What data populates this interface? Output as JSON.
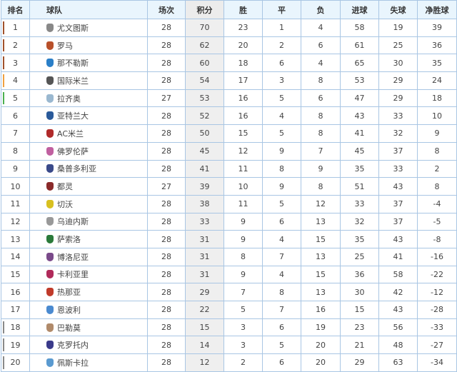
{
  "headers": {
    "rank": "排名",
    "team": "球队",
    "played": "场次",
    "points": "积分",
    "won": "胜",
    "drawn": "平",
    "lost": "负",
    "gf": "进球",
    "ga": "失球",
    "gd": "净胜球"
  },
  "zone_colors": {
    "champions": "#a0522d",
    "europa": "#f0a040",
    "conference": "#4cb050",
    "relegation": "#8a8a8a"
  },
  "rows": [
    {
      "rank": "1",
      "team": "尤文图斯",
      "crest": "juventus-crest",
      "crest_color": "#888888",
      "zone": "champions",
      "played": "28",
      "points": "70",
      "won": "23",
      "drawn": "1",
      "lost": "4",
      "gf": "58",
      "ga": "19",
      "gd": "39"
    },
    {
      "rank": "2",
      "team": "罗马",
      "crest": "roma-crest",
      "crest_color": "#b8502a",
      "zone": "champions",
      "played": "28",
      "points": "62",
      "won": "20",
      "drawn": "2",
      "lost": "6",
      "gf": "61",
      "ga": "25",
      "gd": "36"
    },
    {
      "rank": "3",
      "team": "那不勒斯",
      "crest": "napoli-crest",
      "crest_color": "#2a7fc8",
      "zone": "champions",
      "played": "28",
      "points": "60",
      "won": "18",
      "drawn": "6",
      "lost": "4",
      "gf": "65",
      "ga": "30",
      "gd": "35"
    },
    {
      "rank": "4",
      "team": "国际米兰",
      "crest": "inter-crest",
      "crest_color": "#555555",
      "zone": "europa",
      "played": "28",
      "points": "54",
      "won": "17",
      "drawn": "3",
      "lost": "8",
      "gf": "53",
      "ga": "29",
      "gd": "24"
    },
    {
      "rank": "5",
      "team": "拉齐奥",
      "crest": "lazio-crest",
      "crest_color": "#9ab8d0",
      "zone": "conference",
      "played": "27",
      "points": "53",
      "won": "16",
      "drawn": "5",
      "lost": "6",
      "gf": "47",
      "ga": "29",
      "gd": "18"
    },
    {
      "rank": "6",
      "team": "亚特兰大",
      "crest": "atalanta-crest",
      "crest_color": "#2a5a9a",
      "zone": "",
      "played": "28",
      "points": "52",
      "won": "16",
      "drawn": "4",
      "lost": "8",
      "gf": "43",
      "ga": "33",
      "gd": "10"
    },
    {
      "rank": "7",
      "team": "AC米兰",
      "crest": "milan-crest",
      "crest_color": "#b02a2a",
      "zone": "",
      "played": "28",
      "points": "50",
      "won": "15",
      "drawn": "5",
      "lost": "8",
      "gf": "41",
      "ga": "32",
      "gd": "9"
    },
    {
      "rank": "8",
      "team": "佛罗伦萨",
      "crest": "fiorentina-crest",
      "crest_color": "#c060a0",
      "zone": "",
      "played": "28",
      "points": "45",
      "won": "12",
      "drawn": "9",
      "lost": "7",
      "gf": "45",
      "ga": "37",
      "gd": "8"
    },
    {
      "rank": "9",
      "team": "桑普多利亚",
      "crest": "sampdoria-crest",
      "crest_color": "#3a4a8a",
      "zone": "",
      "played": "28",
      "points": "41",
      "won": "11",
      "drawn": "8",
      "lost": "9",
      "gf": "35",
      "ga": "33",
      "gd": "2"
    },
    {
      "rank": "10",
      "team": "都灵",
      "crest": "torino-crest",
      "crest_color": "#8a2a2a",
      "zone": "",
      "played": "27",
      "points": "39",
      "won": "10",
      "drawn": "9",
      "lost": "8",
      "gf": "51",
      "ga": "43",
      "gd": "8"
    },
    {
      "rank": "11",
      "team": "切沃",
      "crest": "chievo-crest",
      "crest_color": "#d8c020",
      "zone": "",
      "played": "28",
      "points": "38",
      "won": "11",
      "drawn": "5",
      "lost": "12",
      "gf": "33",
      "ga": "37",
      "gd": "-4"
    },
    {
      "rank": "12",
      "team": "乌迪内斯",
      "crest": "udinese-crest",
      "crest_color": "#999999",
      "zone": "",
      "played": "28",
      "points": "33",
      "won": "9",
      "drawn": "6",
      "lost": "13",
      "gf": "32",
      "ga": "37",
      "gd": "-5"
    },
    {
      "rank": "13",
      "team": "萨索洛",
      "crest": "sassuolo-crest",
      "crest_color": "#2a7a3a",
      "zone": "",
      "played": "28",
      "points": "31",
      "won": "9",
      "drawn": "4",
      "lost": "15",
      "gf": "35",
      "ga": "43",
      "gd": "-8"
    },
    {
      "rank": "14",
      "team": "博洛尼亚",
      "crest": "bologna-crest",
      "crest_color": "#7a4a8a",
      "zone": "",
      "played": "28",
      "points": "31",
      "won": "8",
      "drawn": "7",
      "lost": "13",
      "gf": "25",
      "ga": "41",
      "gd": "-16"
    },
    {
      "rank": "15",
      "team": "卡利亚里",
      "crest": "cagliari-crest",
      "crest_color": "#b02a5a",
      "zone": "",
      "played": "28",
      "points": "31",
      "won": "9",
      "drawn": "4",
      "lost": "15",
      "gf": "36",
      "ga": "58",
      "gd": "-22"
    },
    {
      "rank": "16",
      "team": "热那亚",
      "crest": "genoa-crest",
      "crest_color": "#c03a2a",
      "zone": "",
      "played": "28",
      "points": "29",
      "won": "7",
      "drawn": "8",
      "lost": "13",
      "gf": "30",
      "ga": "42",
      "gd": "-12"
    },
    {
      "rank": "17",
      "team": "恩波利",
      "crest": "empoli-crest",
      "crest_color": "#4a8ad0",
      "zone": "",
      "played": "28",
      "points": "22",
      "won": "5",
      "drawn": "7",
      "lost": "16",
      "gf": "15",
      "ga": "43",
      "gd": "-28"
    },
    {
      "rank": "18",
      "team": "巴勒莫",
      "crest": "palermo-crest",
      "crest_color": "#b08a6a",
      "zone": "relegation",
      "played": "28",
      "points": "15",
      "won": "3",
      "drawn": "6",
      "lost": "19",
      "gf": "23",
      "ga": "56",
      "gd": "-33"
    },
    {
      "rank": "19",
      "team": "克罗托内",
      "crest": "crotone-crest",
      "crest_color": "#3a3a8a",
      "zone": "relegation",
      "played": "28",
      "points": "14",
      "won": "3",
      "drawn": "5",
      "lost": "20",
      "gf": "21",
      "ga": "48",
      "gd": "-27"
    },
    {
      "rank": "20",
      "team": "佩斯卡拉",
      "crest": "pescara-crest",
      "crest_color": "#5a9ad0",
      "zone": "relegation",
      "played": "28",
      "points": "12",
      "won": "2",
      "drawn": "6",
      "lost": "20",
      "gf": "29",
      "ga": "63",
      "gd": "-34"
    }
  ]
}
